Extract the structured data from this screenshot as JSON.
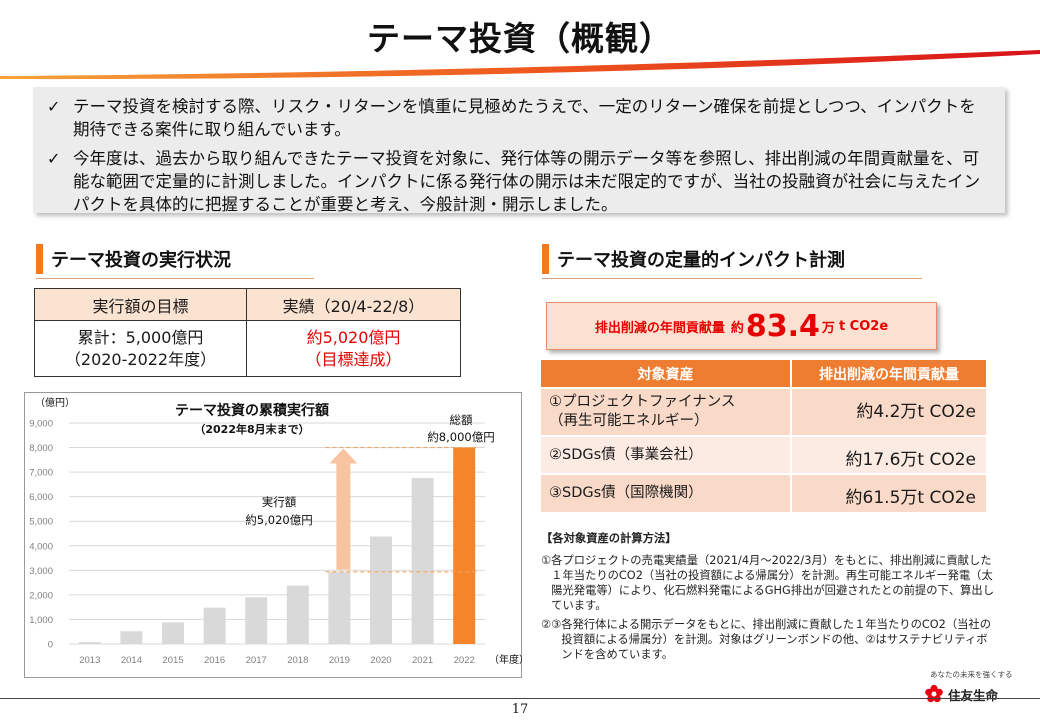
{
  "title": "テーマ投資（概観）",
  "summary": [
    "テーマ投資を検討する際、リスク・リターンを慎重に見極めたうえで、一定のリターン確保を前提としつつ、インパクトを期待できる案件に取り組んでいます。",
    "今年度は、過去から取り組んできたテーマ投資を対象に、発行体等の開示データ等を参照し、排出削減の年間貢献量を、可能な範囲で定量的に計測しました。インパクトに係る発行体の開示は未だ限定的ですが、当社の投融資が社会に与えたインパクトを具体的に把握することが重要と考え、今般計測・開示しました。"
  ],
  "check_symbol": "✓",
  "left_section": {
    "heading": "テーマ投資の実行状況",
    "table": {
      "headers": [
        "実行額の目標",
        "実績（20/4-22/8）"
      ],
      "target_line1": "累計：5,000億円",
      "target_line2": "（2020-2022年度）",
      "actual_line1": "約5,020億円",
      "actual_line2": "（目標達成）"
    }
  },
  "chart_data": {
    "type": "bar",
    "title": "テーマ投資の累積実行額",
    "subtitle": "（2022年8月末まで）",
    "ylabel": "（億円）",
    "xlabel": "（年度）",
    "ylim": [
      0,
      9000
    ],
    "yticks": [
      "0",
      "1,000",
      "2,000",
      "3,000",
      "4,000",
      "5,000",
      "6,000",
      "7,000",
      "8,000",
      "9,000"
    ],
    "categories": [
      "2013",
      "2014",
      "2015",
      "2016",
      "2017",
      "2018",
      "2019",
      "2020",
      "2021",
      "2022"
    ],
    "values": [
      80,
      520,
      880,
      1480,
      1900,
      2380,
      2940,
      4380,
      6760,
      8000
    ],
    "highlight_index": 9,
    "bar_color": "#d9d9d9",
    "highlight_color": "#f5852a",
    "annotations": {
      "total_line1": "総額",
      "total_line2": "約8,000億円",
      "executed_line1": "実行額",
      "executed_line2": "約5,020億円"
    },
    "grid": true
  },
  "right_section": {
    "heading": "テーマ投資の定量的インパクト計測",
    "impact": {
      "label": "排出削減の年間貢献量",
      "prefix": "約",
      "value": "83.4",
      "unit": "万",
      "unit2": "t CO2e"
    },
    "table": {
      "headers": [
        "対象資産",
        "排出削減の年間貢献量"
      ],
      "rows": [
        {
          "asset_line1": "①プロジェクトファイナンス",
          "asset_line2": "（再生可能エネルギー）",
          "value": "約4.2万t CO2e"
        },
        {
          "asset_line1": "②SDGs債（事業会社）",
          "asset_line2": "",
          "value": "約17.6万t CO2e"
        },
        {
          "asset_line1": "③SDGs債（国際機関）",
          "asset_line2": "",
          "value": "約61.5万t CO2e"
        }
      ]
    },
    "method": {
      "heading": "【各対象資産の計算方法】",
      "items": [
        {
          "num": "①",
          "text": "各プロジェクトの売電実績量（2021/4月～2022/3月）をもとに、排出削減に貢献した１年当たりのCO2（当社の投資額による帰属分）を計測。再生可能エネルギー発電（太陽光発電等）により、化石燃料発電によるGHG排出が回避されたとの前提の下、算出しています。"
        },
        {
          "num": "②③",
          "text": "各発行体による開示データをもとに、排出削減に貢献した１年当たりのCO2（当社の投資額による帰属分）を計測。対象はグリーンボンドの他、②はサステナビリティボンドを含めています。"
        }
      ]
    }
  },
  "footer": {
    "page_number": "17",
    "tagline": "あなたの未来を強くする",
    "company": "住友生命",
    "accent_color": "#e60012"
  }
}
